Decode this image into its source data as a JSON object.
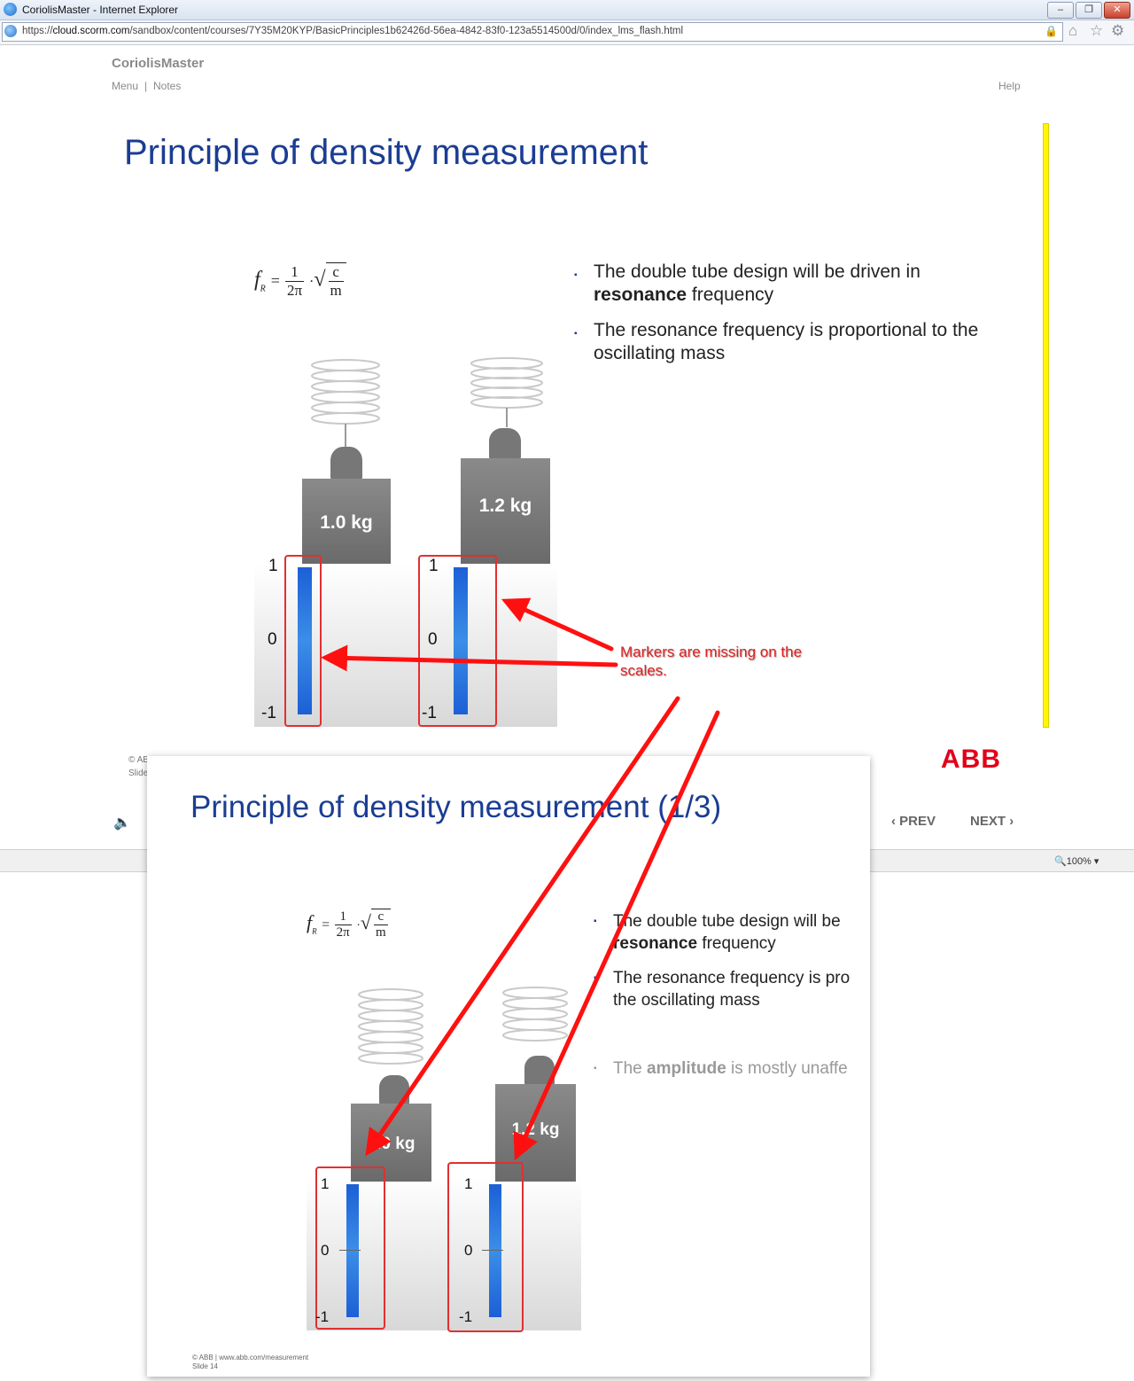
{
  "browser": {
    "window_title": "CoriolisMaster - Internet Explorer",
    "url_prefix": "https://",
    "url_host": "cloud.scorm.com",
    "url_path": "/sandbox/content/courses/7Y35M20KYP/BasicPrinciples1b62426d-56ea-4842-83f0-123a5514500d/0/index_lms_flash.html",
    "zoom": "100%",
    "icons": [
      "ie-icon",
      "minimize-icon",
      "restore-icon",
      "close-icon",
      "lock-icon",
      "home-icon",
      "star-icon",
      "gear-icon"
    ]
  },
  "header": {
    "brand": "CoriolisMaster",
    "menu": "Menu",
    "separator": "|",
    "notes": "Notes",
    "help": "Help"
  },
  "slide": {
    "title": "Principle of density measurement",
    "formula": {
      "f": "f",
      "sub": "R",
      "eq": "=",
      "num": "1",
      "den": "2π",
      "dot": "·",
      "c": "c",
      "m": "m"
    },
    "bullets": [
      {
        "pre": "The double tube design will be driven in ",
        "bold": "resonance",
        "post": " frequency"
      },
      {
        "pre": "The resonance frequency is proportional to the oscillating mass",
        "bold": "",
        "post": ""
      }
    ],
    "weights": [
      "1.0 kg",
      "1.2 kg"
    ],
    "scale_labels": [
      "1",
      "0",
      "-1"
    ],
    "annotation": "Markers are missing on the scales.",
    "footer_line1": "© AB",
    "footer_line2": "Slide",
    "logo": "ABB"
  },
  "nav": {
    "prev": "PREV",
    "next": "NEXT",
    "prev_icon": "chevron-left-icon",
    "next_icon": "chevron-right-icon",
    "sound_icon": "speaker-icon"
  },
  "overlay": {
    "title": "Principle of density measurement (1/3)",
    "bullets": [
      {
        "pre": "The double tube design will be ",
        "bold": "resonance",
        "post": " frequency"
      },
      {
        "pre": "The resonance frequency is pro",
        "line2": "the oscillating mass"
      },
      {
        "pre": "The ",
        "bold": "amplitude",
        "post": " is mostly unaffe"
      }
    ],
    "weights": [
      "1.0 kg",
      "1.2 kg"
    ],
    "scale_labels": [
      "1",
      "0",
      "-1"
    ],
    "footer_line1": "© ABB | www.abb.com/measurement",
    "footer_line2": "Slide 14"
  },
  "colors": {
    "title_blue": "#1b3d93",
    "annotation_red": "#e02020",
    "bar_blue": "#1c5fd6",
    "abb_red": "#e2001a",
    "yellow": "#fff600"
  }
}
